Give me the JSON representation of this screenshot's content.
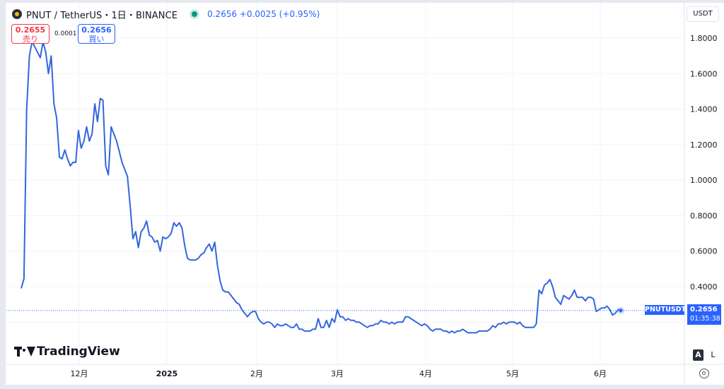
{
  "header": {
    "symbol_title": "PNUT / TetherUS・1日・BINANCE",
    "price_info": "0.2656 +0.0025 (+0.95%)",
    "logo_icon": "binance-logo-icon"
  },
  "trade": {
    "sell_price": "0.2655",
    "sell_label": "売り",
    "spread": "0.0001",
    "buy_price": "0.2656",
    "buy_label": "買い"
  },
  "currency_button": "USDT",
  "price_scale": {
    "symbol_label": "PNUTUSDT",
    "last_price": "0.2656",
    "countdown": "01:35:38"
  },
  "branding": {
    "name": "TradingView"
  },
  "scale_buttons": {
    "auto": "A",
    "log": "L"
  },
  "colors": {
    "line": "#3366dd",
    "accent": "#2962ff",
    "sell": "#f23645",
    "live": "#089981"
  },
  "chart_data": {
    "type": "line",
    "series": [
      {
        "values": [
          0.39,
          0.445,
          1.4,
          1.7,
          1.78,
          1.75,
          1.72,
          1.69,
          1.78,
          1.72,
          1.6,
          1.7,
          1.43,
          1.35,
          1.13,
          1.12,
          1.17,
          1.12,
          1.08,
          1.1,
          1.1,
          1.28,
          1.18,
          1.22,
          1.3,
          1.22,
          1.26,
          1.43,
          1.33,
          1.46,
          1.45,
          1.08,
          1.03,
          1.3,
          1.26,
          1.22,
          1.16,
          1.1,
          1.06,
          1.02,
          0.85,
          0.67,
          0.71,
          0.62,
          0.71,
          0.73,
          0.77,
          0.69,
          0.68,
          0.65,
          0.66,
          0.6,
          0.68,
          0.67,
          0.68,
          0.7,
          0.76,
          0.74,
          0.76,
          0.73,
          0.63,
          0.56,
          0.55,
          0.55,
          0.55,
          0.56,
          0.58,
          0.59,
          0.62,
          0.64,
          0.6,
          0.65,
          0.52,
          0.43,
          0.38,
          0.37,
          0.37,
          0.35,
          0.33,
          0.31,
          0.3,
          0.27,
          0.25,
          0.23,
          0.25,
          0.26,
          0.26,
          0.22,
          0.2,
          0.19,
          0.2,
          0.2,
          0.19,
          0.17,
          0.19,
          0.18,
          0.18,
          0.19,
          0.18,
          0.17,
          0.17,
          0.19,
          0.16,
          0.16,
          0.15,
          0.15,
          0.15,
          0.16,
          0.16,
          0.22,
          0.17,
          0.17,
          0.21,
          0.17,
          0.22,
          0.2,
          0.27,
          0.23,
          0.23,
          0.21,
          0.22,
          0.21,
          0.21,
          0.2,
          0.2,
          0.19,
          0.18,
          0.17,
          0.18,
          0.18,
          0.19,
          0.19,
          0.21,
          0.2,
          0.2,
          0.19,
          0.2,
          0.19,
          0.2,
          0.2,
          0.2,
          0.23,
          0.23,
          0.22,
          0.21,
          0.2,
          0.19,
          0.18,
          0.19,
          0.18,
          0.16,
          0.15,
          0.16,
          0.16,
          0.16,
          0.15,
          0.15,
          0.14,
          0.15,
          0.14,
          0.15,
          0.15,
          0.16,
          0.15,
          0.14,
          0.14,
          0.14,
          0.14,
          0.15,
          0.15,
          0.15,
          0.15,
          0.16,
          0.18,
          0.17,
          0.19,
          0.19,
          0.2,
          0.19,
          0.2,
          0.2,
          0.2,
          0.19,
          0.2,
          0.18,
          0.17,
          0.17,
          0.17,
          0.17,
          0.19,
          0.38,
          0.36,
          0.41,
          0.42,
          0.44,
          0.4,
          0.34,
          0.32,
          0.3,
          0.35,
          0.34,
          0.33,
          0.35,
          0.38,
          0.34,
          0.34,
          0.34,
          0.32,
          0.34,
          0.34,
          0.33,
          0.26,
          0.27,
          0.28,
          0.28,
          0.29,
          0.27,
          0.24,
          0.25,
          0.27,
          0.2656
        ]
      }
    ],
    "x_ticks": [
      "12月",
      "2025",
      "2月",
      "3月",
      "4月",
      "5月",
      "6月"
    ],
    "y_ticks": [
      "1.8000",
      "1.6000",
      "1.4000",
      "1.2000",
      "1.0000",
      "0.8000",
      "0.6000",
      "0.4000"
    ],
    "ylim": [
      0.1,
      1.85
    ],
    "last_value": 0.2656,
    "grid": true
  }
}
